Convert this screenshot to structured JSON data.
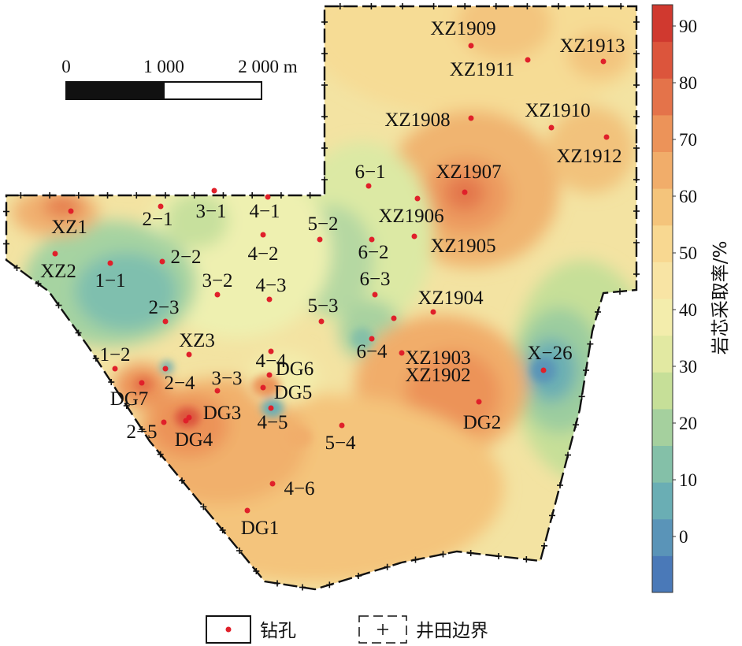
{
  "map": {
    "scale_bar": {
      "labels": [
        "0",
        "1 000",
        "2 000 m"
      ]
    },
    "legend_bar": {
      "title": "岩芯采取率/%",
      "ticks": [
        "0",
        "10",
        "20",
        "30",
        "40",
        "50",
        "60",
        "70",
        "80",
        "90"
      ],
      "colors": [
        "#4a79b8",
        "#5a94b8",
        "#6aaeb4",
        "#84c0a8",
        "#a5d09e",
        "#c6df98",
        "#e2e9a2",
        "#f3edac",
        "#f8e4a4",
        "#f8d891",
        "#f4c47b",
        "#f1ad6a",
        "#ec9359",
        "#e4734a",
        "#dc553c",
        "#d0392f"
      ]
    },
    "boreholes": [
      {
        "id": "XZ1909"
      },
      {
        "id": "XZ1913"
      },
      {
        "id": "XZ1911"
      },
      {
        "id": "XZ1908"
      },
      {
        "id": "XZ1910"
      },
      {
        "id": "XZ1912"
      },
      {
        "id": "XZ1907"
      },
      {
        "id": "6−1"
      },
      {
        "id": "XZ1906"
      },
      {
        "id": "XZ1905"
      },
      {
        "id": "XZ1"
      },
      {
        "id": "2−1"
      },
      {
        "id": "3−1"
      },
      {
        "id": "4−1"
      },
      {
        "id": "5−2"
      },
      {
        "id": "6−2"
      },
      {
        "id": "XZ2"
      },
      {
        "id": "1−1"
      },
      {
        "id": "2−2"
      },
      {
        "id": "4−2"
      },
      {
        "id": "3−2"
      },
      {
        "id": "4−3"
      },
      {
        "id": "6−3"
      },
      {
        "id": "XZ1904"
      },
      {
        "id": "2−3"
      },
      {
        "id": "5−3"
      },
      {
        "id": "XZ1903"
      },
      {
        "id": "XZ3"
      },
      {
        "id": "4−4"
      },
      {
        "id": "6−4"
      },
      {
        "id": "X−26"
      },
      {
        "id": "1−2"
      },
      {
        "id": "DG6"
      },
      {
        "id": "XZ1902"
      },
      {
        "id": "2−4"
      },
      {
        "id": "3−3"
      },
      {
        "id": "DG7"
      },
      {
        "id": "DG5"
      },
      {
        "id": "DG3"
      },
      {
        "id": "DG2"
      },
      {
        "id": "4−5"
      },
      {
        "id": "2−5"
      },
      {
        "id": "DG4"
      },
      {
        "id": "5−4"
      },
      {
        "id": "4−6"
      },
      {
        "id": "DG1"
      }
    ],
    "legend": {
      "borehole_label": "钻孔",
      "boundary_label": "井田边界"
    },
    "colors": {
      "borehole_dot": "#e0202a",
      "boundary": "#111111"
    }
  }
}
